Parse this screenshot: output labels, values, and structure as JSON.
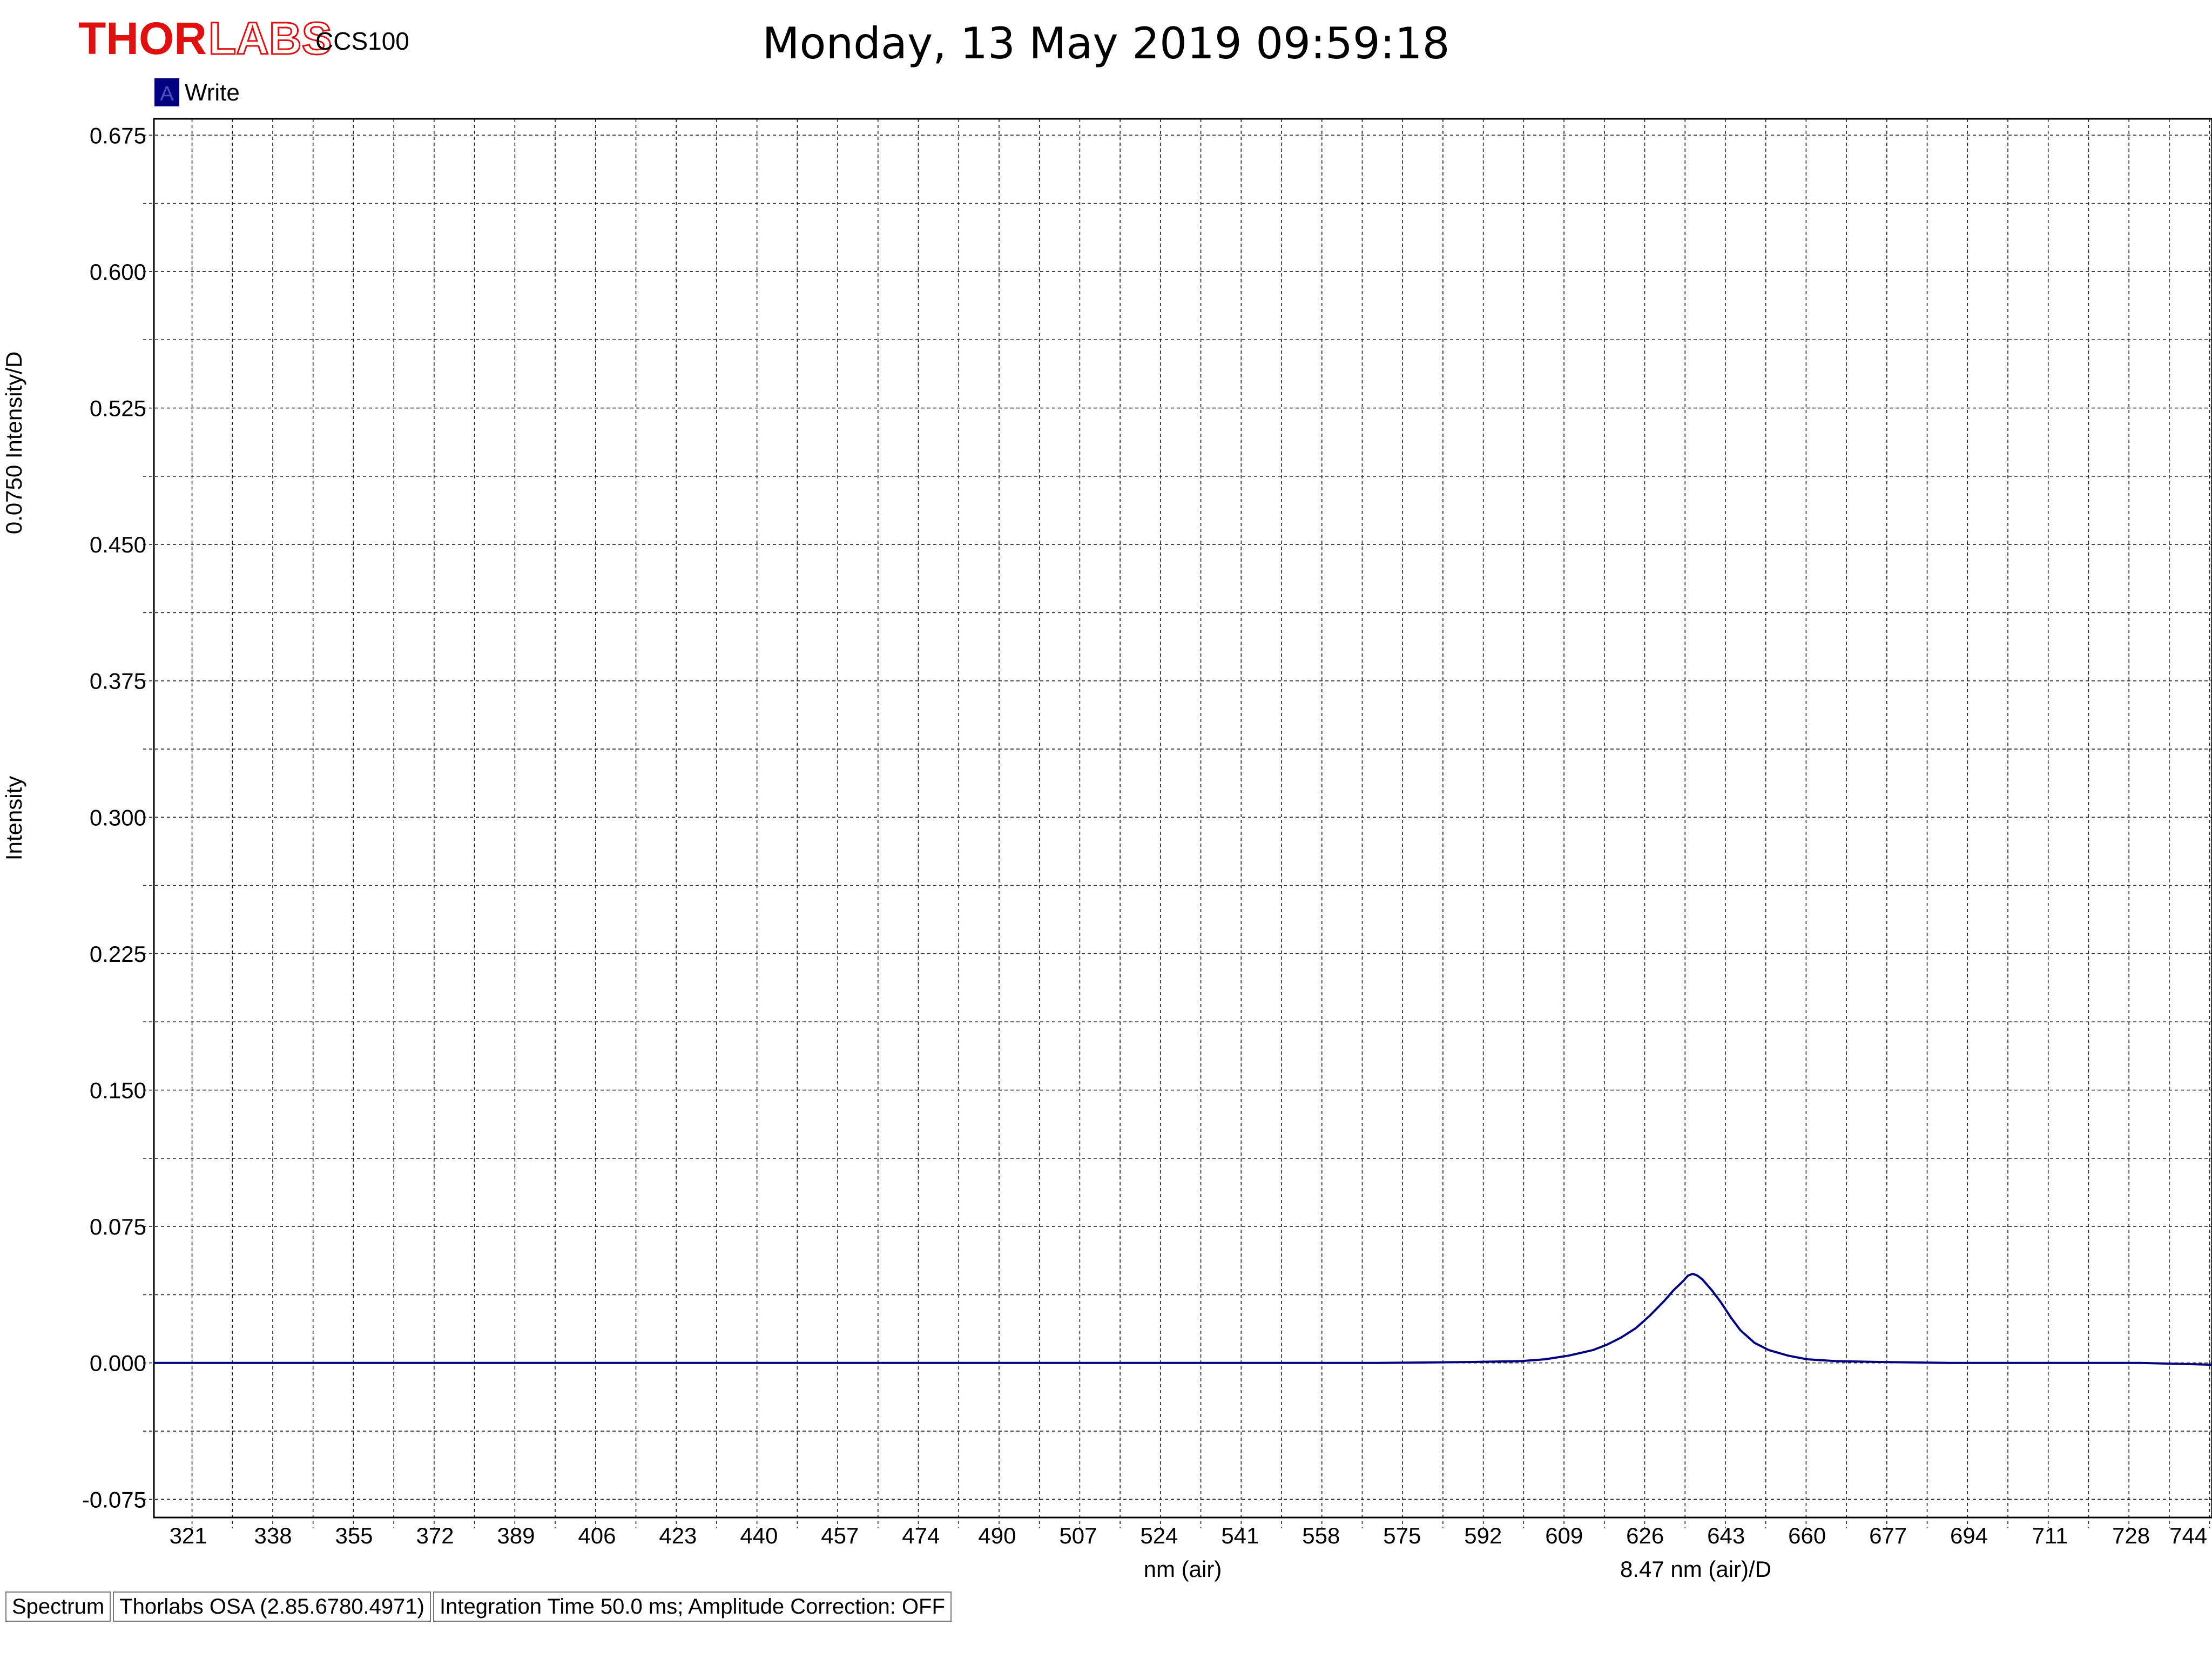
{
  "header": {
    "brand_thor": "THOR",
    "brand_labs": "LABS",
    "model": "CCS100",
    "timestamp": "Monday, 13 May 2019 09:59:18"
  },
  "legend": {
    "marker_letter": "A",
    "label": "Write",
    "color": "#000080"
  },
  "status_bar": {
    "mode": "Spectrum",
    "software": "Thorlabs OSA (2.85.6780.4971)",
    "settings": "Integration Time 50.0 ms; Amplitude Correction: OFF"
  },
  "chart_data": {
    "type": "line",
    "xlabel": "nm (air)",
    "x_div_label": "8.47 nm (air)/D",
    "ylabel": "Intensity",
    "y_div_label": "0.0750 Intensity/D",
    "xlim": [
      313,
      745
    ],
    "ylim": [
      -0.085,
      0.684
    ],
    "x_ticks": [
      321,
      338,
      355,
      372,
      389,
      406,
      423,
      440,
      457,
      474,
      490,
      507,
      524,
      541,
      558,
      575,
      592,
      609,
      626,
      643,
      660,
      677,
      694,
      711,
      728,
      744
    ],
    "y_ticks": [
      0.675,
      0.6,
      0.525,
      0.45,
      0.375,
      0.3,
      0.225,
      0.15,
      0.075,
      0.0,
      -0.075
    ],
    "y_tick_labels": [
      "0.675",
      "0.600",
      "0.525",
      "0.450",
      "0.375",
      "0.300",
      "0.225",
      "0.150",
      "0.075",
      "0.000",
      "-0.075"
    ],
    "grid": true,
    "series": [
      {
        "name": "Write",
        "color": "#000080",
        "x": [
          313,
          340,
          380,
          420,
          460,
          500,
          540,
          570,
          590,
          600,
          605,
          610,
          615,
          618,
          621,
          624,
          627,
          630,
          632,
          634,
          635,
          636,
          637,
          638,
          640,
          642,
          644,
          646,
          649,
          652,
          656,
          660,
          666,
          675,
          690,
          710,
          730,
          745
        ],
        "y": [
          0.0,
          0.0,
          0.0,
          0.0,
          0.0,
          0.0,
          0.0,
          0.0,
          0.0005,
          0.001,
          0.002,
          0.004,
          0.007,
          0.01,
          0.014,
          0.019,
          0.026,
          0.034,
          0.04,
          0.045,
          0.048,
          0.049,
          0.048,
          0.046,
          0.04,
          0.033,
          0.025,
          0.018,
          0.011,
          0.007,
          0.004,
          0.002,
          0.001,
          0.0005,
          0.0,
          0.0,
          0.0,
          -0.001
        ]
      }
    ]
  }
}
